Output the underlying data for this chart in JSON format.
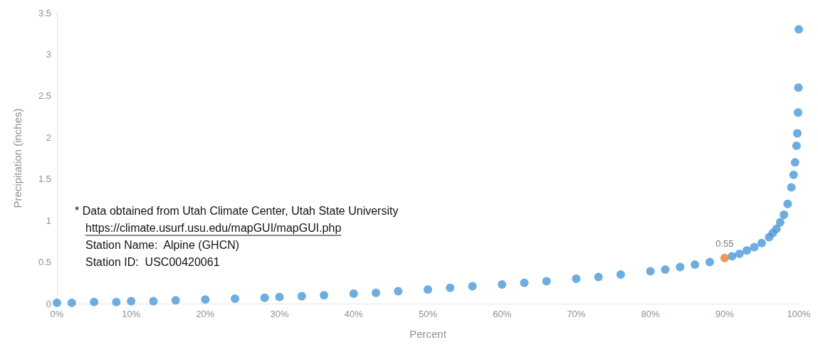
{
  "chart_data": {
    "type": "scatter",
    "xlabel": "Percent",
    "ylabel": "Precipitation (inches)",
    "xlim": [
      0,
      100
    ],
    "ylim": [
      0,
      3.5
    ],
    "xticks": [
      {
        "value": 0,
        "label": "0%"
      },
      {
        "value": 10,
        "label": "10%"
      },
      {
        "value": 20,
        "label": "20%"
      },
      {
        "value": 30,
        "label": "30%"
      },
      {
        "value": 40,
        "label": "40%"
      },
      {
        "value": 50,
        "label": "50%"
      },
      {
        "value": 60,
        "label": "60%"
      },
      {
        "value": 70,
        "label": "70%"
      },
      {
        "value": 80,
        "label": "80%"
      },
      {
        "value": 90,
        "label": "90%"
      },
      {
        "value": 100,
        "label": "100%"
      }
    ],
    "yticks": [
      0,
      0.5,
      1,
      1.5,
      2,
      2.5,
      3,
      3.5
    ],
    "grid": false,
    "marker": "circle",
    "series": [
      {
        "color": "#4a98d8",
        "x": [
          0,
          2,
          5,
          8,
          10,
          13,
          16,
          20,
          24,
          28,
          30,
          33,
          36,
          40,
          43,
          46,
          50,
          53,
          56,
          60,
          63,
          66,
          70,
          73,
          76,
          80,
          82,
          84,
          86,
          88,
          90,
          91,
          92,
          93,
          94,
          95,
          96,
          96.5,
          97,
          97.5,
          98,
          98.5,
          99,
          99.3,
          99.5,
          99.7,
          99.8,
          99.9,
          99.95,
          100
        ],
        "values": [
          0.01,
          0.01,
          0.02,
          0.02,
          0.03,
          0.03,
          0.04,
          0.05,
          0.06,
          0.07,
          0.08,
          0.09,
          0.1,
          0.12,
          0.13,
          0.15,
          0.17,
          0.19,
          0.21,
          0.23,
          0.25,
          0.27,
          0.3,
          0.32,
          0.35,
          0.39,
          0.41,
          0.44,
          0.47,
          0.5,
          null,
          0.57,
          0.6,
          0.64,
          0.68,
          0.73,
          0.8,
          0.85,
          0.9,
          0.98,
          1.07,
          1.2,
          1.4,
          1.55,
          1.7,
          1.9,
          2.05,
          2.3,
          2.6,
          3.3
        ]
      },
      {
        "color": "#ed7d31",
        "x": [
          90
        ],
        "values": [
          0.55
        ],
        "value_labels": [
          "0.55"
        ]
      }
    ],
    "annotations": [
      "* Data obtained from Utah Climate Center, Utah State University",
      "https://climate.usurf.usu.edu/mapGUI/mapGUI.php",
      "Station Name:  Alpine (GHCN)",
      "Station ID:  USC00420061"
    ]
  }
}
